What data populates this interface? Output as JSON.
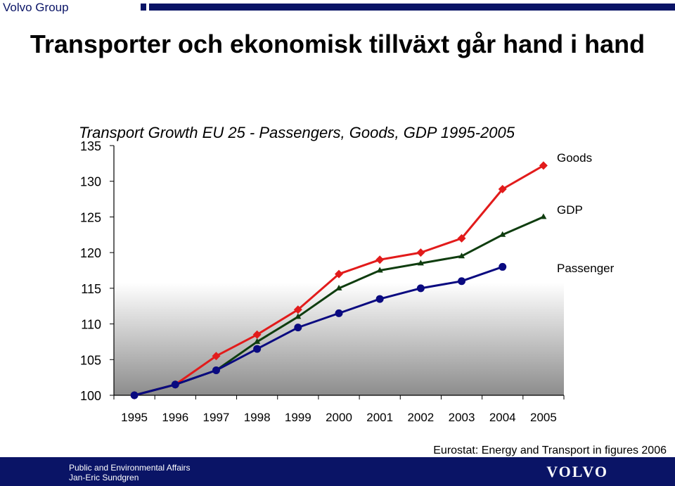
{
  "header": {
    "brand": "Volvo Group"
  },
  "slide": {
    "title": "Transporter och ekonomisk tillväxt går hand i hand"
  },
  "source_note": "Eurostat: Energy and Transport in figures 2006",
  "footer": {
    "line1": "Public and Environmental Affairs",
    "line2": "Jan-Eric Sundgren",
    "logo": "VOLVO"
  },
  "colors": {
    "brand_navy": "#0a1466",
    "goods": "#e21b1b",
    "gdp": "#0f3d0f",
    "passenger": "#0a0a80"
  },
  "chart_data": {
    "type": "line",
    "title": "Transport Growth EU 25 - Passengers, Goods, GDP 1995-2005",
    "x": [
      "1995",
      "1996",
      "1997",
      "1998",
      "1999",
      "2000",
      "2001",
      "2002",
      "2003",
      "2004",
      "2005"
    ],
    "ylim": [
      100,
      135
    ],
    "yticks": [
      "100",
      "105",
      "110",
      "115",
      "120",
      "125",
      "130",
      "135"
    ],
    "background": "gradient white to grey",
    "series": [
      {
        "name": "Goods",
        "marker": "diamond",
        "color": "#e21b1b",
        "values": [
          100,
          101.5,
          105.5,
          108.5,
          112,
          117,
          119,
          120,
          122,
          128.9,
          132.2
        ]
      },
      {
        "name": "GDP",
        "marker": "triangle",
        "color": "#0f3d0f",
        "values": [
          100,
          101.5,
          103.5,
          107.5,
          111,
          115,
          117.5,
          118.5,
          119.5,
          122.5,
          125
        ]
      },
      {
        "name": "Passenger",
        "marker": "circle",
        "color": "#0a0a80",
        "values": [
          100,
          101.5,
          103.5,
          106.5,
          109.5,
          111.5,
          113.5,
          115,
          116,
          118,
          null
        ]
      }
    ]
  }
}
